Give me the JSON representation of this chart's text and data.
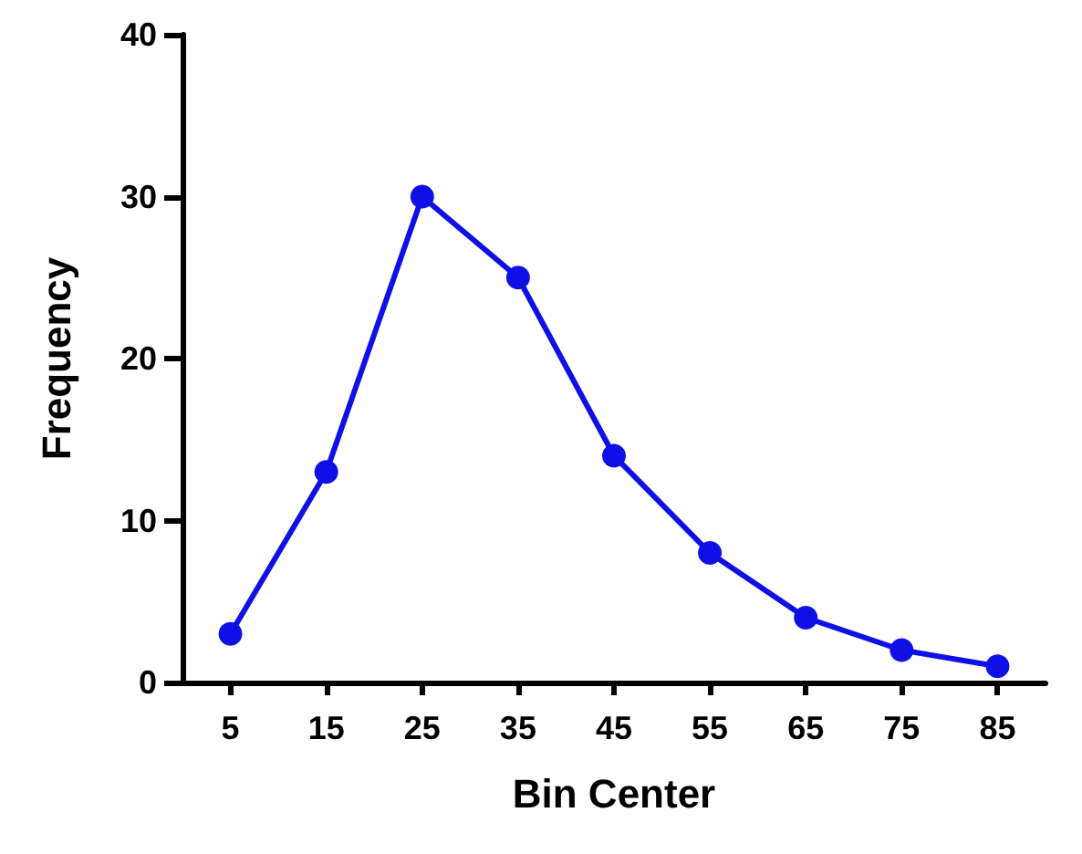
{
  "chart_data": {
    "type": "line",
    "xlabel": "Bin Center",
    "ylabel": "Frequency",
    "categories": [
      "5",
      "15",
      "25",
      "35",
      "45",
      "55",
      "65",
      "75",
      "85"
    ],
    "series": [
      {
        "color": "#0f0fe8",
        "values": [
          3,
          13,
          30,
          25,
          14,
          8,
          4,
          2,
          1
        ]
      }
    ],
    "ylim": [
      0,
      40
    ],
    "yticks": [
      0,
      10,
      20,
      30,
      40
    ],
    "grid": false,
    "marker": "circle",
    "line_style": "solid"
  }
}
